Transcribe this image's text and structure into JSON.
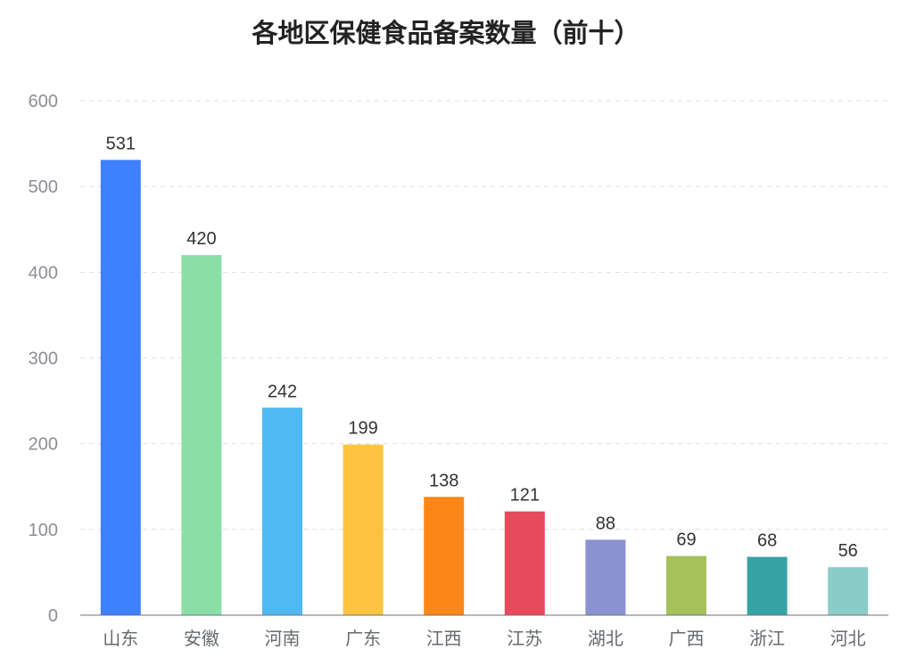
{
  "chart_data": {
    "type": "bar",
    "title": "各地区保健食品备案数量（前十）",
    "xlabel": "",
    "ylabel": "",
    "categories": [
      "山东",
      "安徽",
      "河南",
      "广东",
      "江西",
      "江苏",
      "湖北",
      "广西",
      "浙江",
      "河北"
    ],
    "values": [
      531,
      420,
      242,
      199,
      138,
      121,
      88,
      69,
      68,
      56
    ],
    "colors": [
      "#3f80ff",
      "#8adea6",
      "#4fb8f5",
      "#ffc340",
      "#fc8718",
      "#e64a5c",
      "#8a92d2",
      "#a4c259",
      "#36a2a6",
      "#8accc8"
    ],
    "ylim": [
      0,
      600
    ],
    "yticks": [
      0,
      100,
      200,
      300,
      400,
      500,
      600
    ],
    "grid": true,
    "legend": "none",
    "data_labels": true
  }
}
